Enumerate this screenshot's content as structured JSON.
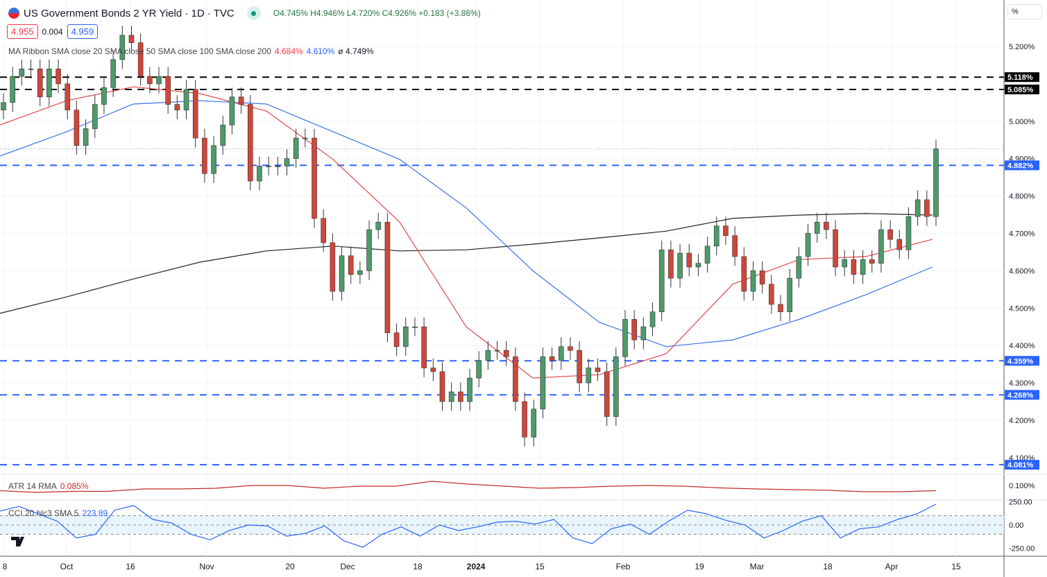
{
  "header": {
    "title": "US Government Bonds 2 YR Yield · 1D · TVC",
    "open": "O4.745%",
    "high": "H4.946%",
    "low": "L4.720%",
    "close": "C4.926%",
    "change": "+0.183 (+3.86%)",
    "bid": "4.955",
    "spread": "0.004",
    "ask": "4.959"
  },
  "legends": {
    "ma_ribbon": "MA Ribbon SMA close 20 SMA close 50 SMA close 100 SMA close 200",
    "ma20": "4.684%",
    "ma50": "4.610%",
    "ma_other": "ø 4.749%",
    "atr": "ATR 14 RMA",
    "atr_value": "0.085%",
    "cci": "CCI 20 hlc3 SMA 5",
    "cci_value": "223.89"
  },
  "axis_unit": "%",
  "colors": {
    "up": "#4e9a6a",
    "down": "#d0463a",
    "sma20": "#e04848",
    "sma50": "#3a72e6",
    "sma200": "#222222",
    "level_blue": "#2962ff",
    "level_black": "#000000",
    "atr": "#c62828",
    "cci": "#2962ff"
  },
  "chart_data": {
    "type": "candlestick",
    "title": "US Government Bonds 2 YR Yield · 1D · TVC",
    "ylim": [
      4.07,
      5.26
    ],
    "yticks": [
      "5.200%",
      "5.000%",
      "4.900%",
      "4.800%",
      "4.700%",
      "4.600%",
      "4.500%",
      "4.400%",
      "4.300%",
      "4.200%",
      "4.100%"
    ],
    "ytick_values": [
      5.2,
      5.0,
      4.9,
      4.8,
      4.7,
      4.6,
      4.5,
      4.4,
      4.3,
      4.2,
      4.1
    ],
    "xticks": [
      "8",
      "Oct",
      "16",
      "Nov",
      "20",
      "Dec",
      "18",
      "2024",
      "15",
      "Feb",
      "19",
      "Mar",
      "18",
      "Apr",
      "15"
    ],
    "closes": [
      5.05,
      5.12,
      5.14,
      5.14,
      5.065,
      5.14,
      5.1,
      5.03,
      4.935,
      4.98,
      5.045,
      5.09,
      5.165,
      5.23,
      5.21,
      5.12,
      5.1,
      5.12,
      5.045,
      5.03,
      5.085,
      4.955,
      4.86,
      4.935,
      4.99,
      5.065,
      5.045,
      4.84,
      4.88,
      4.88,
      4.88,
      4.9,
      4.955,
      4.955,
      4.74,
      4.675,
      4.545,
      4.64,
      4.59,
      4.6,
      4.71,
      4.73,
      4.434,
      4.397,
      4.45,
      4.45,
      4.34,
      4.33,
      4.25,
      4.276,
      4.25,
      4.313,
      4.36,
      4.387,
      4.387,
      4.37,
      4.25,
      4.155,
      4.23,
      4.37,
      4.36,
      4.397,
      4.387,
      4.3,
      4.34,
      4.33,
      4.21,
      4.37,
      4.47,
      4.415,
      4.45,
      4.49,
      4.656,
      4.58,
      4.647,
      4.61,
      4.62,
      4.666,
      4.72,
      4.694,
      4.638,
      4.545,
      4.6,
      4.564,
      4.51,
      4.49,
      4.58,
      4.638,
      4.7,
      4.73,
      4.71,
      4.61,
      4.63,
      4.59,
      4.63,
      4.62,
      4.71,
      4.684,
      4.656,
      4.745,
      4.79,
      4.745,
      4.926
    ],
    "sma20": [
      4.99,
      5.055,
      5.092,
      5.074,
      5.027,
      4.898,
      4.73,
      4.45,
      4.313,
      4.322,
      4.378,
      4.564,
      4.63,
      4.638,
      4.684
    ],
    "sma50": [
      4.907,
      4.972,
      5.046,
      5.055,
      5.046,
      4.972,
      4.898,
      4.768,
      4.6,
      4.462,
      4.397,
      4.415,
      4.47,
      4.536,
      4.61
    ],
    "sma200": [
      4.486,
      4.53,
      4.578,
      4.623,
      4.653,
      4.666,
      4.653,
      4.656,
      4.671,
      4.688,
      4.706,
      4.74,
      4.749,
      4.753,
      4.749
    ],
    "levels": [
      {
        "value": 5.118,
        "label": "5.118%",
        "color": "black"
      },
      {
        "value": 5.085,
        "label": "5.085%",
        "color": "black"
      },
      {
        "value": 4.882,
        "label": "4.882%",
        "color": "blue"
      },
      {
        "value": 4.359,
        "label": "4.359%",
        "color": "blue"
      },
      {
        "value": 4.268,
        "label": "4.268%",
        "color": "blue"
      },
      {
        "value": 4.081,
        "label": "4.081%",
        "color": "blue"
      }
    ],
    "current_price": 4.926,
    "atr": {
      "ytick": "0.100%",
      "ytick_value": 0.1,
      "values": [
        0.085,
        0.08,
        0.083,
        0.083,
        0.09,
        0.09,
        0.092,
        0.1,
        0.1,
        0.092,
        0.098,
        0.098,
        0.112,
        0.104,
        0.098,
        0.092,
        0.094,
        0.098,
        0.1,
        0.098,
        0.093,
        0.09,
        0.088,
        0.086,
        0.082,
        0.082,
        0.085
      ]
    },
    "cci": {
      "yticks": [
        "250.00",
        "0.00",
        "-250.00"
      ],
      "ytick_values": [
        250,
        0,
        -250
      ],
      "bands": [
        100,
        -100
      ],
      "values": [
        150,
        200,
        120,
        40,
        -140,
        -100,
        160,
        210,
        60,
        20,
        -100,
        -160,
        -60,
        0,
        -10,
        -120,
        -90,
        -10,
        -170,
        -240,
        -100,
        -20,
        -120,
        0,
        -60,
        -20,
        30,
        40,
        10,
        60,
        -140,
        -200,
        -40,
        10,
        -100,
        40,
        160,
        120,
        50,
        0,
        -140,
        -60,
        40,
        100,
        -140,
        -40,
        -20,
        60,
        120,
        223.89
      ]
    }
  }
}
